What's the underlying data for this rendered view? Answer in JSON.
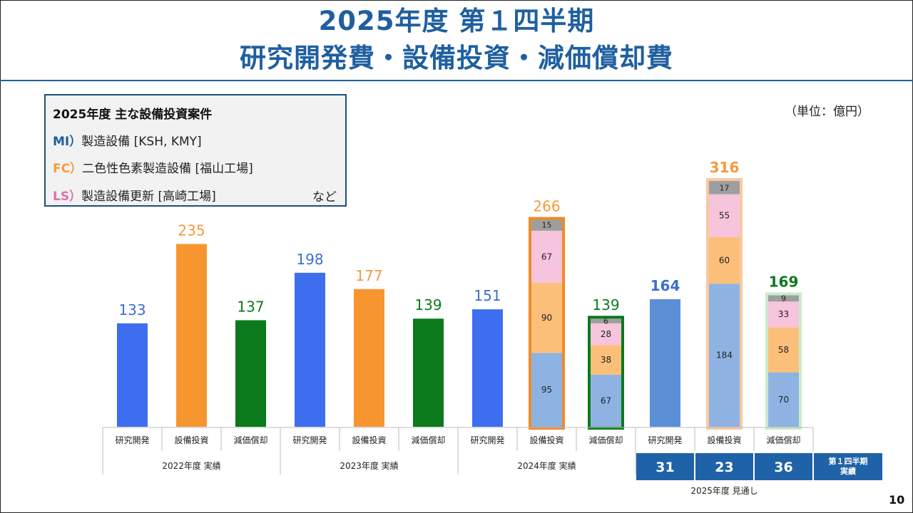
{
  "title_line1": "2025年度 第１四半期",
  "title_line2": "研究開発費・設備投資・減価償却費",
  "unit_label": "（単位：億円）",
  "page_number": "10",
  "cases_box": {
    "title": "2025年度 主な設備投資案件",
    "items": [
      {
        "tag": "MI）",
        "text": "製造設備 [KSH, KMY]",
        "color": "#1f5fa0"
      },
      {
        "tag": "FC）",
        "text": "二色性色素製造設備 [福山工場]",
        "color": "#f59a3c"
      },
      {
        "tag": "LS）",
        "text": "製造設備更新 [高崎工場]",
        "color": "#e070a8"
      }
    ],
    "suffix": "など"
  },
  "colors": {
    "rd": "#3d6ef0",
    "capex": "#f7962e",
    "dep": "#0b7a1c",
    "seg_mi": "#8eb3e3",
    "seg_fc": "#fbbf79",
    "seg_ls": "#f6c4dc",
    "seg_other": "#9e9e9e",
    "rd_2025": "#5b8fd6",
    "q1_box": "#1f62a8"
  },
  "chart_data": {
    "type": "bar",
    "ylim": [
      0,
      316
    ],
    "categories": [
      "研究開発",
      "設備投資",
      "減価償却",
      "研究開発",
      "設備投資",
      "減価償却",
      "研究開発",
      "設備投資",
      "減価償却",
      "研究開発",
      "設備投資",
      "減価償却"
    ],
    "groups": [
      {
        "label": "2022年度 実績",
        "span": 3
      },
      {
        "label": "2023年度 実績",
        "span": 3
      },
      {
        "label": "2024年度 実績",
        "span": 3
      },
      {
        "label": "2025年度 見通し",
        "span": 3
      }
    ],
    "totals": [
      133,
      235,
      137,
      198,
      177,
      139,
      151,
      266,
      139,
      164,
      316,
      169
    ],
    "segment_order": [
      "MI",
      "FC",
      "LS",
      "other"
    ],
    "segments": [
      null,
      null,
      null,
      null,
      null,
      null,
      null,
      [
        95,
        90,
        67,
        15
      ],
      [
        67,
        38,
        28,
        6
      ],
      null,
      [
        184,
        60,
        55,
        17
      ],
      [
        70,
        58,
        33,
        9
      ]
    ],
    "q1_actuals": {
      "label": "第１四半期\n実績",
      "values": [
        31,
        23,
        36
      ]
    }
  }
}
